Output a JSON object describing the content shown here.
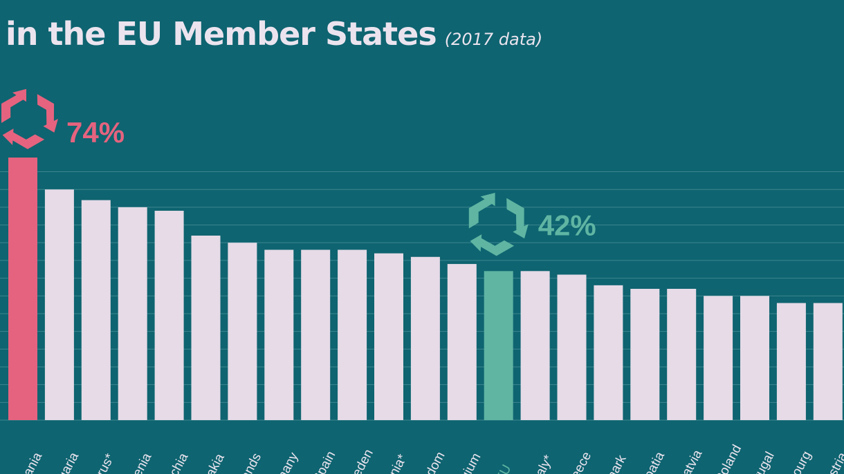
{
  "title": {
    "line1": "",
    "line2": "in the EU Member States",
    "subtitle": "(2017 data)"
  },
  "colors": {
    "background": "#0e6470",
    "bar_default": "#e6dbe7",
    "bar_highlight_top": "#e5637f",
    "bar_highlight_eu": "#5fb5a2",
    "gridline": "#3d8790",
    "text_light": "#ebe4ef"
  },
  "icons": {
    "top": "recycle-icon",
    "eu": "recycle-icon"
  },
  "chart_data": {
    "type": "bar",
    "title": "in the EU Member States",
    "subtitle": "(2017 data)",
    "categories": [
      "Lithuania",
      "Bulgaria",
      "Cyprus*",
      "Slovenia",
      "Czechia",
      "Slovakia",
      "Netherlands",
      "Germany",
      "Spain",
      "Sweden",
      "Romania*",
      "United Kingdom",
      "Belgium",
      "EU",
      "Italy*",
      "Greece",
      "Denmark",
      "Croatia",
      "Latvia",
      "Poland",
      "Portugal",
      "Luxembourg",
      "Austria"
    ],
    "tick_labels_visible": [
      "uania",
      "lgaria",
      "prus*",
      "venia",
      "echia",
      "vakia",
      "lands",
      "many",
      "Spain",
      "veden",
      "ania*",
      "ndom",
      "lgium",
      "EU",
      "Italy*",
      "reece",
      "mark",
      "roatia",
      "Latvia",
      "Poland",
      "rtugal",
      "bourg",
      "ustria"
    ],
    "values": [
      74,
      65,
      62,
      60,
      59,
      52,
      50,
      48,
      48,
      48,
      47,
      46,
      44,
      42,
      42,
      41,
      38,
      37,
      37,
      35,
      35,
      33,
      33
    ],
    "highlight": [
      {
        "category": "Lithuania",
        "label": "74%",
        "color": "#e5637f"
      },
      {
        "category": "EU",
        "label": "42%",
        "color": "#5fb5a2"
      }
    ],
    "ylim": [
      0,
      74
    ],
    "xlabel": "",
    "ylabel": "",
    "grid": true
  }
}
